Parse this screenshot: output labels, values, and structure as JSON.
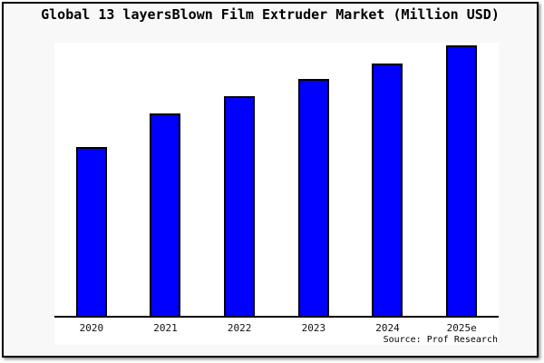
{
  "window": {
    "background_color": "#f8f8f8",
    "frame_border_color": "#000000",
    "plot_background_color": "#ffffff"
  },
  "chart_data": {
    "type": "bar",
    "title": "Global 13 layersBlown Film Extruder Market (Million USD)",
    "categories": [
      "2020",
      "2021",
      "2022",
      "2023",
      "2024",
      "2025e"
    ],
    "values": [
      62.4,
      74.8,
      81.2,
      87.6,
      93.3,
      100
    ],
    "values_scale": "relative height, % of tallest bar (y-axis unlabeled)",
    "xlabel": "",
    "ylabel": "",
    "ylim": [
      0,
      101
    ],
    "y_axis_visible": false,
    "grid": false,
    "legend": "none",
    "bar_color": "#0000FF",
    "bar_border_color": "#000000",
    "source": "Source: Prof Research"
  }
}
